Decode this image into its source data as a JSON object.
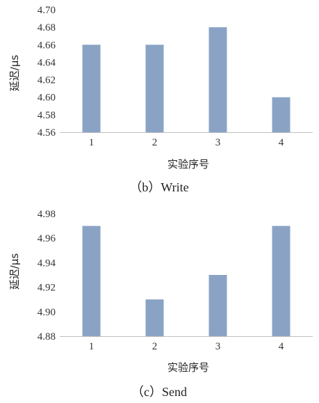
{
  "chart_data": [
    {
      "type": "bar",
      "caption": "（b）Write",
      "categories": [
        "1",
        "2",
        "3",
        "4"
      ],
      "values": [
        4.66,
        4.66,
        4.68,
        4.6
      ],
      "xlabel": "实验序号",
      "ylabel": "延迟/μs",
      "ylim": [
        4.56,
        4.7
      ],
      "yticks": [
        "4.56",
        "4.58",
        "4.60",
        "4.62",
        "4.64",
        "4.66",
        "4.68",
        "4.70"
      ],
      "bar_color": "#8aa3c5",
      "grid": false
    },
    {
      "type": "bar",
      "caption": "（c）Send",
      "categories": [
        "1",
        "2",
        "3",
        "4"
      ],
      "values": [
        4.97,
        4.91,
        4.93,
        4.97
      ],
      "xlabel": "实验序号",
      "ylabel": "延迟/μs",
      "ylim": [
        4.88,
        4.98
      ],
      "yticks": [
        "4.88",
        "4.90",
        "4.92",
        "4.94",
        "4.96",
        "4.98"
      ],
      "bar_color": "#8aa3c5",
      "grid": false
    }
  ]
}
